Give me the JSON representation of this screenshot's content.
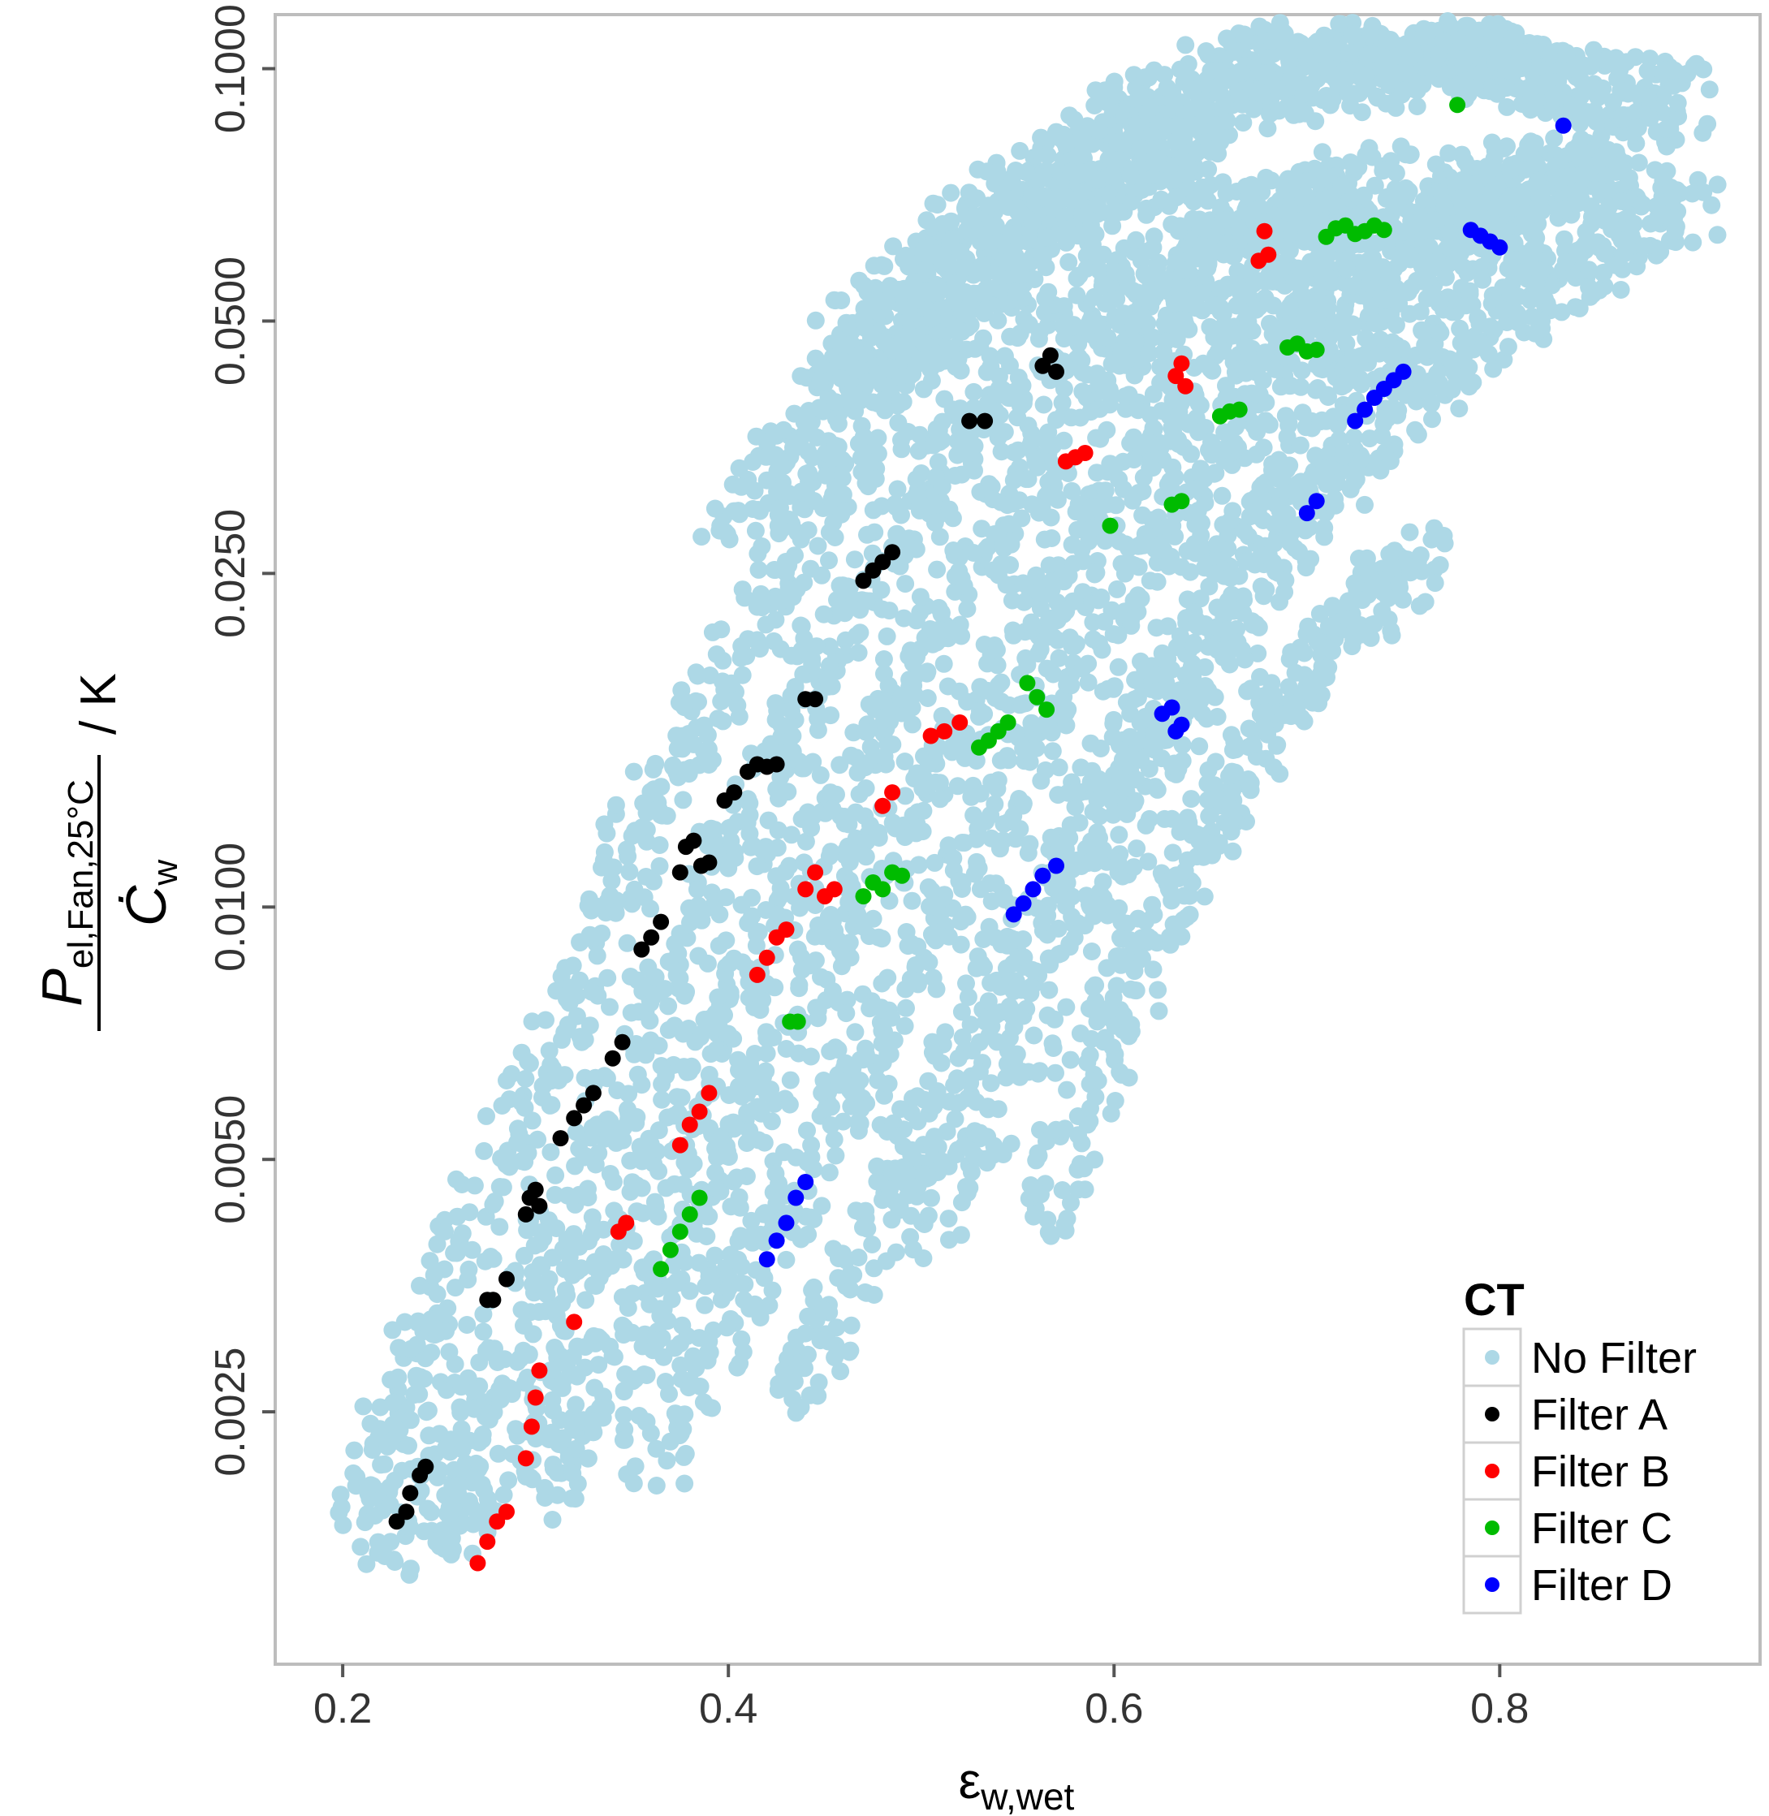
{
  "chart_data": {
    "type": "scatter",
    "xlabel_main": "ε",
    "xlabel_sub": "w,wet",
    "ylabel_num_main": "P",
    "ylabel_num_sub": "el,Fan,25°C",
    "ylabel_den_main": "Ċ",
    "ylabel_den_sub": "w",
    "ylabel_unit": "/ K",
    "xlim": [
      0.165,
      0.935
    ],
    "ylim": [
      0.00125,
      0.116
    ],
    "y_scale": "log",
    "x_ticks": [
      "0.2",
      "0.4",
      "0.6",
      "0.8"
    ],
    "y_ticks": [
      "0.0025",
      "0.0050",
      "0.0100",
      "0.0250",
      "0.0500",
      "0.1000"
    ],
    "legend": {
      "title": "CT",
      "position": "bottom-right",
      "entries": [
        "No Filter",
        "Filter A",
        "Filter B",
        "Filter C",
        "Filter D"
      ]
    },
    "series": [
      {
        "name": "No Filter",
        "color": "#add8e6",
        "bands": [
          [
            [
              0.205,
              0.0019
            ],
            [
              0.25,
              0.0033
            ],
            [
              0.3,
              0.0062
            ],
            [
              0.35,
              0.0115
            ],
            [
              0.4,
              0.019
            ],
            [
              0.45,
              0.031
            ],
            [
              0.5,
              0.045
            ],
            [
              0.55,
              0.058
            ],
            [
              0.6,
              0.071
            ],
            [
              0.65,
              0.079
            ]
          ],
          [
            [
              0.22,
              0.0017
            ],
            [
              0.27,
              0.0026
            ],
            [
              0.32,
              0.0048
            ],
            [
              0.37,
              0.0085
            ],
            [
              0.42,
              0.0145
            ],
            [
              0.47,
              0.024
            ],
            [
              0.52,
              0.036
            ],
            [
              0.57,
              0.048
            ],
            [
              0.62,
              0.058
            ],
            [
              0.67,
              0.066
            ],
            [
              0.72,
              0.072
            ]
          ],
          [
            [
              0.25,
              0.0017
            ],
            [
              0.3,
              0.0026
            ],
            [
              0.35,
              0.0044
            ],
            [
              0.4,
              0.0076
            ],
            [
              0.45,
              0.0125
            ],
            [
              0.5,
              0.02
            ],
            [
              0.55,
              0.031
            ],
            [
              0.6,
              0.044
            ],
            [
              0.65,
              0.056
            ],
            [
              0.7,
              0.066
            ],
            [
              0.75,
              0.074
            ]
          ],
          [
            [
              0.3,
              0.0019
            ],
            [
              0.35,
              0.003
            ],
            [
              0.4,
              0.005
            ],
            [
              0.45,
              0.0085
            ],
            [
              0.5,
              0.0135
            ],
            [
              0.55,
              0.021
            ],
            [
              0.6,
              0.032
            ],
            [
              0.65,
              0.045
            ],
            [
              0.7,
              0.056
            ],
            [
              0.75,
              0.067
            ],
            [
              0.8,
              0.076
            ]
          ],
          [
            [
              0.36,
              0.0022
            ],
            [
              0.41,
              0.0036
            ],
            [
              0.46,
              0.006
            ],
            [
              0.51,
              0.0098
            ],
            [
              0.56,
              0.016
            ],
            [
              0.61,
              0.025
            ],
            [
              0.66,
              0.037
            ],
            [
              0.71,
              0.05
            ],
            [
              0.76,
              0.062
            ],
            [
              0.81,
              0.072
            ],
            [
              0.86,
              0.08
            ]
          ],
          [
            [
              0.43,
              0.0026
            ],
            [
              0.48,
              0.0044
            ],
            [
              0.53,
              0.0075
            ],
            [
              0.58,
              0.0125
            ],
            [
              0.63,
              0.02
            ],
            [
              0.68,
              0.031
            ],
            [
              0.73,
              0.044
            ],
            [
              0.78,
              0.058
            ],
            [
              0.83,
              0.07
            ],
            [
              0.88,
              0.079
            ]
          ],
          [
            [
              0.5,
              0.004
            ],
            [
              0.55,
              0.007
            ],
            [
              0.6,
              0.012
            ],
            [
              0.65,
              0.02
            ],
            [
              0.7,
              0.03
            ],
            [
              0.75,
              0.04
            ],
            [
              0.8,
              0.05
            ],
            [
              0.85,
              0.06
            ],
            [
              0.9,
              0.068
            ]
          ],
          [
            [
              0.56,
              0.0042
            ],
            [
              0.6,
              0.0075
            ],
            [
              0.64,
              0.0115
            ],
            [
              0.68,
              0.0165
            ],
            [
              0.72,
              0.022
            ],
            [
              0.76,
              0.026
            ]
          ],
          [
            [
              0.45,
              0.045
            ],
            [
              0.5,
              0.058
            ],
            [
              0.55,
              0.072
            ],
            [
              0.6,
              0.086
            ],
            [
              0.65,
              0.097
            ],
            [
              0.7,
              0.107
            ],
            [
              0.75,
              0.11
            ],
            [
              0.8,
              0.1
            ],
            [
              0.85,
              0.095
            ]
          ],
          [
            [
              0.4,
              0.028
            ],
            [
              0.45,
              0.04
            ],
            [
              0.5,
              0.05
            ],
            [
              0.55,
              0.064
            ],
            [
              0.6,
              0.078
            ],
            [
              0.65,
              0.09
            ],
            [
              0.7,
              0.096
            ],
            [
              0.75,
              0.1
            ],
            [
              0.8,
              0.105
            ],
            [
              0.85,
              0.094
            ],
            [
              0.9,
              0.092
            ]
          ]
        ]
      },
      {
        "name": "Filter A",
        "color": "#000000",
        "points": [
          [
            0.228,
            0.00185
          ],
          [
            0.233,
            0.0019
          ],
          [
            0.235,
            0.002
          ],
          [
            0.24,
            0.0021
          ],
          [
            0.243,
            0.00215
          ],
          [
            0.275,
            0.0034
          ],
          [
            0.278,
            0.0034
          ],
          [
            0.285,
            0.0036
          ],
          [
            0.295,
            0.0043
          ],
          [
            0.297,
            0.0045
          ],
          [
            0.3,
            0.0046
          ],
          [
            0.302,
            0.0044
          ],
          [
            0.313,
            0.0053
          ],
          [
            0.32,
            0.0056
          ],
          [
            0.325,
            0.0058
          ],
          [
            0.33,
            0.006
          ],
          [
            0.34,
            0.0066
          ],
          [
            0.345,
            0.0069
          ],
          [
            0.355,
            0.0089
          ],
          [
            0.36,
            0.0092
          ],
          [
            0.365,
            0.0096
          ],
          [
            0.375,
            0.011
          ],
          [
            0.378,
            0.0118
          ],
          [
            0.382,
            0.012
          ],
          [
            0.386,
            0.0112
          ],
          [
            0.39,
            0.0113
          ],
          [
            0.398,
            0.0134
          ],
          [
            0.403,
            0.0137
          ],
          [
            0.41,
            0.0145
          ],
          [
            0.415,
            0.0148
          ],
          [
            0.42,
            0.0147
          ],
          [
            0.425,
            0.0148
          ],
          [
            0.44,
            0.0177
          ],
          [
            0.445,
            0.0177
          ],
          [
            0.47,
            0.0245
          ],
          [
            0.475,
            0.0252
          ],
          [
            0.48,
            0.0258
          ],
          [
            0.485,
            0.0265
          ],
          [
            0.525,
            0.038
          ],
          [
            0.533,
            0.038
          ],
          [
            0.563,
            0.0442
          ],
          [
            0.567,
            0.0455
          ],
          [
            0.57,
            0.0435
          ]
        ]
      },
      {
        "name": "Filter B",
        "color": "#ff0000",
        "points": [
          [
            0.27,
            0.00165
          ],
          [
            0.275,
            0.00175
          ],
          [
            0.28,
            0.00185
          ],
          [
            0.285,
            0.0019
          ],
          [
            0.295,
            0.0022
          ],
          [
            0.298,
            0.0024
          ],
          [
            0.3,
            0.0026
          ],
          [
            0.302,
            0.0028
          ],
          [
            0.32,
            0.0032
          ],
          [
            0.343,
            0.0041
          ],
          [
            0.347,
            0.0042
          ],
          [
            0.375,
            0.0052
          ],
          [
            0.38,
            0.0055
          ],
          [
            0.385,
            0.0057
          ],
          [
            0.39,
            0.006
          ],
          [
            0.415,
            0.0083
          ],
          [
            0.42,
            0.0087
          ],
          [
            0.425,
            0.0092
          ],
          [
            0.43,
            0.0094
          ],
          [
            0.44,
            0.0105
          ],
          [
            0.445,
            0.011
          ],
          [
            0.45,
            0.0103
          ],
          [
            0.455,
            0.0105
          ],
          [
            0.48,
            0.0132
          ],
          [
            0.485,
            0.0137
          ],
          [
            0.505,
            0.016
          ],
          [
            0.512,
            0.0162
          ],
          [
            0.52,
            0.0166
          ],
          [
            0.575,
            0.034
          ],
          [
            0.58,
            0.0344
          ],
          [
            0.585,
            0.0348
          ],
          [
            0.632,
            0.043
          ],
          [
            0.635,
            0.0445
          ],
          [
            0.637,
            0.0418
          ],
          [
            0.675,
            0.059
          ],
          [
            0.68,
            0.06
          ],
          [
            0.678,
            0.064
          ]
        ]
      },
      {
        "name": "Filter C",
        "color": "#00bb00",
        "points": [
          [
            0.365,
            0.0037
          ],
          [
            0.37,
            0.0039
          ],
          [
            0.375,
            0.0041
          ],
          [
            0.38,
            0.0043
          ],
          [
            0.385,
            0.0045
          ],
          [
            0.432,
            0.0073
          ],
          [
            0.436,
            0.0073
          ],
          [
            0.47,
            0.0103
          ],
          [
            0.475,
            0.0107
          ],
          [
            0.48,
            0.0105
          ],
          [
            0.485,
            0.011
          ],
          [
            0.49,
            0.0109
          ],
          [
            0.53,
            0.0155
          ],
          [
            0.535,
            0.0158
          ],
          [
            0.54,
            0.0162
          ],
          [
            0.545,
            0.0166
          ],
          [
            0.555,
            0.0185
          ],
          [
            0.56,
            0.0178
          ],
          [
            0.565,
            0.0172
          ],
          [
            0.598,
            0.0285
          ],
          [
            0.63,
            0.0302
          ],
          [
            0.635,
            0.0305
          ],
          [
            0.655,
            0.0385
          ],
          [
            0.66,
            0.039
          ],
          [
            0.665,
            0.0392
          ],
          [
            0.69,
            0.0465
          ],
          [
            0.695,
            0.047
          ],
          [
            0.7,
            0.046
          ],
          [
            0.705,
            0.0462
          ],
          [
            0.71,
            0.063
          ],
          [
            0.715,
            0.0645
          ],
          [
            0.72,
            0.065
          ],
          [
            0.725,
            0.0635
          ],
          [
            0.73,
            0.064
          ],
          [
            0.735,
            0.065
          ],
          [
            0.74,
            0.0642
          ],
          [
            0.778,
            0.0905
          ]
        ]
      },
      {
        "name": "Filter D",
        "color": "#0000ff",
        "points": [
          [
            0.42,
            0.0038
          ],
          [
            0.425,
            0.004
          ],
          [
            0.43,
            0.0042
          ],
          [
            0.435,
            0.0045
          ],
          [
            0.44,
            0.0047
          ],
          [
            0.548,
            0.0098
          ],
          [
            0.553,
            0.0101
          ],
          [
            0.558,
            0.0105
          ],
          [
            0.563,
            0.0109
          ],
          [
            0.57,
            0.0112
          ],
          [
            0.625,
            0.017
          ],
          [
            0.63,
            0.0173
          ],
          [
            0.632,
            0.0162
          ],
          [
            0.635,
            0.0165
          ],
          [
            0.7,
            0.0295
          ],
          [
            0.705,
            0.0305
          ],
          [
            0.725,
            0.038
          ],
          [
            0.73,
            0.0392
          ],
          [
            0.735,
            0.0405
          ],
          [
            0.74,
            0.0415
          ],
          [
            0.745,
            0.0425
          ],
          [
            0.75,
            0.0435
          ],
          [
            0.785,
            0.0642
          ],
          [
            0.79,
            0.0632
          ],
          [
            0.795,
            0.0622
          ],
          [
            0.8,
            0.0612
          ],
          [
            0.833,
            0.0855
          ]
        ]
      }
    ]
  }
}
